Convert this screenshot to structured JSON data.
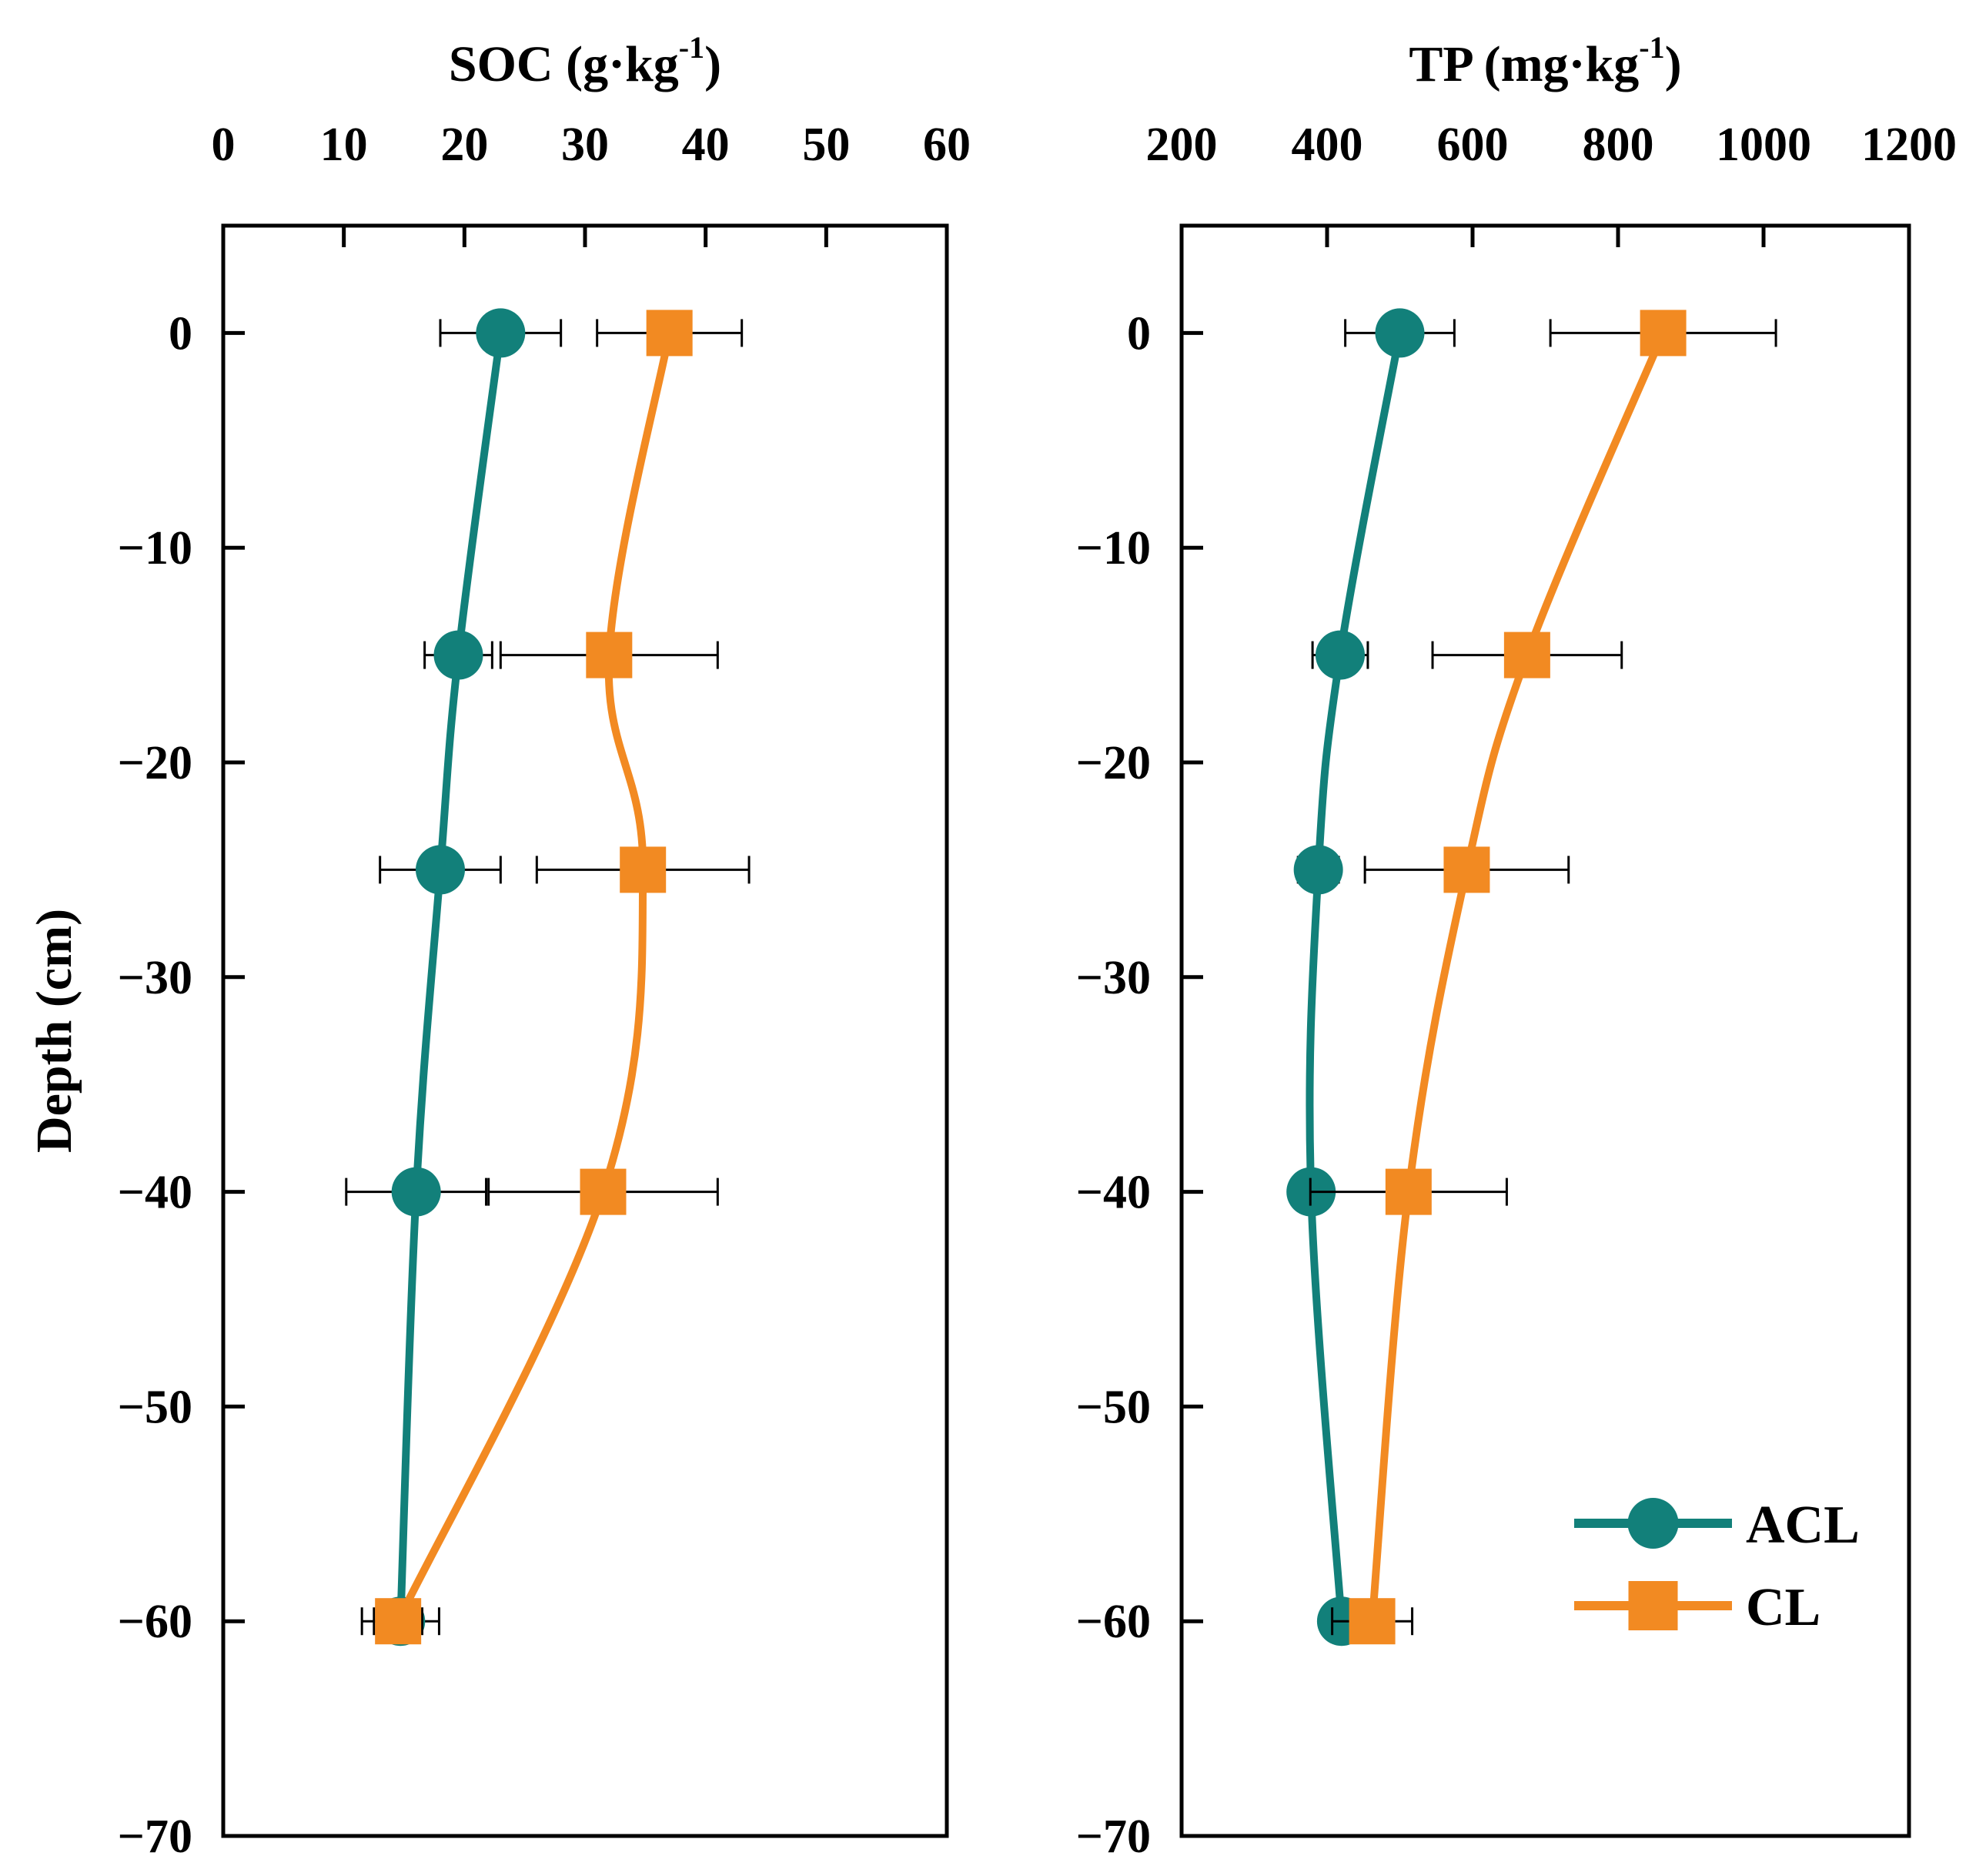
{
  "chart_data": [
    {
      "type": "line",
      "title": "",
      "xlabel": "SOC (g·kg",
      "xlabel_sup": "-1",
      "xlabel_end": ")",
      "ylabel": "Depth (cm)",
      "xlim": [
        0,
        60
      ],
      "ylim": [
        -70,
        5
      ],
      "x_ticks": [
        0,
        10,
        20,
        30,
        40,
        50,
        60
      ],
      "x_tick_labels": [
        "0",
        "10",
        "20",
        "30",
        "40",
        "50",
        "60"
      ],
      "y_ticks": [
        0,
        -10,
        -20,
        -30,
        -40,
        -50,
        -60,
        -70
      ],
      "y_tick_labels": [
        "0",
        "−10",
        "−20",
        "−30",
        "−40",
        "−50",
        "−60",
        "−70"
      ],
      "x_axis_position": "top",
      "grid": false,
      "series": [
        {
          "name": "ACL",
          "color": "#12807a",
          "marker": "circle",
          "depth": [
            0,
            -15,
            -25,
            -40,
            -60
          ],
          "values": [
            23,
            19.5,
            18,
            16,
            14.7
          ],
          "error": [
            5,
            2.8,
            5,
            5.8,
            3.2
          ]
        },
        {
          "name": "CL",
          "color": "#f28a22",
          "marker": "square",
          "depth": [
            0,
            -15,
            -25,
            -40,
            -60
          ],
          "values": [
            37,
            32,
            34.8,
            31.5,
            14.5
          ],
          "error": [
            6,
            9,
            8.8,
            9.5,
            2
          ]
        }
      ]
    },
    {
      "type": "line",
      "title": "",
      "xlabel": "TP (mg·kg",
      "xlabel_sup": "-1",
      "xlabel_end": ")",
      "ylabel": "",
      "xlim": [
        200,
        1200
      ],
      "ylim": [
        -70,
        5
      ],
      "x_ticks": [
        200,
        400,
        600,
        800,
        1000,
        1200
      ],
      "x_tick_labels": [
        "200",
        "400",
        "600",
        "800",
        "1000",
        "1200"
      ],
      "y_ticks": [
        0,
        -10,
        -20,
        -30,
        -40,
        -50,
        -60,
        -70
      ],
      "y_tick_labels": [
        "0",
        "−10",
        "−20",
        "−30",
        "−40",
        "−50",
        "−60",
        "−70"
      ],
      "x_axis_position": "top",
      "grid": false,
      "legend": "bottom-right",
      "series": [
        {
          "name": "ACL",
          "color": "#12807a",
          "marker": "circle",
          "depth": [
            0,
            -15,
            -25,
            -40,
            -60
          ],
          "values": [
            500,
            418,
            388,
            378,
            420
          ],
          "error": [
            75,
            38,
            28,
            25,
            18
          ]
        },
        {
          "name": "CL",
          "color": "#f28a22",
          "marker": "square",
          "depth": [
            0,
            -15,
            -25,
            -40,
            -60
          ],
          "values": [
            862,
            675,
            592,
            512,
            462
          ],
          "error": [
            155,
            130,
            140,
            135,
            55
          ]
        }
      ]
    }
  ]
}
